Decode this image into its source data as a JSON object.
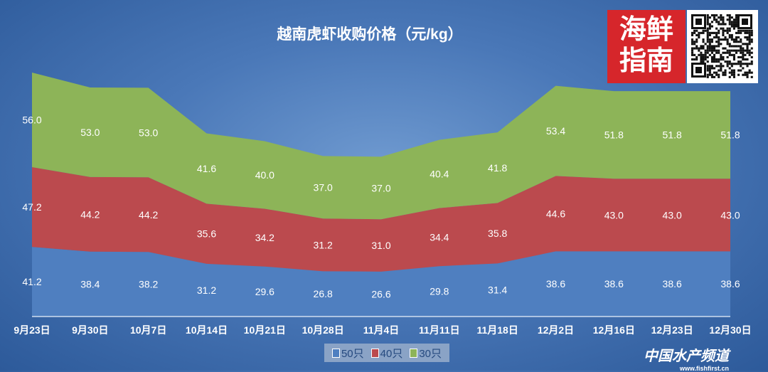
{
  "chart_data": {
    "type": "area",
    "stacked": true,
    "title": "越南虎虾收购价格（元/kg）",
    "categories": [
      "9月23日",
      "9月30日",
      "10月7日",
      "10月14日",
      "10月21日",
      "10月28日",
      "11月4日",
      "11月11日",
      "11月18日",
      "12月2日",
      "12月16日",
      "12月23日",
      "12月30日"
    ],
    "series": [
      {
        "name": "50只",
        "color": "#4f7fc0",
        "values": [
          41.2,
          38.4,
          38.2,
          31.2,
          29.6,
          26.8,
          26.6,
          29.8,
          31.4,
          38.6,
          38.6,
          38.6,
          38.6
        ]
      },
      {
        "name": "40只",
        "color": "#bb4a4e",
        "values": [
          47.2,
          44.2,
          44.2,
          35.6,
          34.2,
          31.2,
          31.0,
          34.4,
          35.8,
          44.6,
          43.0,
          43.0,
          43.0
        ]
      },
      {
        "name": "30只",
        "color": "#8db458",
        "values": [
          56.0,
          53.0,
          53.0,
          41.6,
          40.0,
          37.0,
          37.0,
          40.4,
          41.8,
          53.4,
          51.8,
          51.8,
          51.8
        ]
      }
    ],
    "legend_position": "bottom",
    "ylim": [
      0,
      145
    ],
    "grid": false
  },
  "logo": {
    "text": "海鲜指南"
  },
  "watermark": {
    "name": "中国水产频道",
    "url": "www.fishfirst.cn"
  }
}
